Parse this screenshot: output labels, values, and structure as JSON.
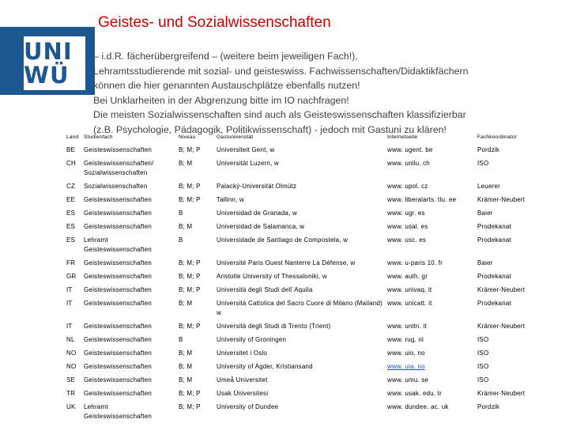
{
  "header": {
    "title": "Geistes- und Sozialwissenschaften",
    "logo_line1": "UNI",
    "logo_line2": "WÜ"
  },
  "intro": [
    "– i.d.R. fächerübergreifend – (weitere beim jeweiligen Fach!),",
    "Lehramtsstudierende mit sozial- und geisteswiss. Fachwissenschaften/Didaktikfächern",
    "können die hier genannten Austauschplätze ebenfalls nutzen!",
    "Bei Unklarheiten in der Abgrenzung bitte im IO nachfragen!",
    "Die meisten Sozialwissenschaften sind auch als Geisteswissenschaften klassifizierbar",
    "(z.B. Psychologie, Pädagogik, Politikwissenschaft) - jedoch mit Gastuni zu klären!"
  ],
  "table": {
    "headers": {
      "land": "Land",
      "fach": "Studienfach",
      "niveau": "Niveau",
      "gast": "Gastuniversität",
      "web": "Internetseite",
      "koord": "Fachkoordinator"
    },
    "rows": [
      {
        "land": "BE",
        "fach": "Geisteswissenschaften",
        "niveau": "B; M; P",
        "gast": "Universiteit Gent, w",
        "web": "www. ugent. be",
        "koord": "Pordzik"
      },
      {
        "land": "CH",
        "fach": "Geisteswissenschaften/ Sozialwissenschaften",
        "niveau": "B; M",
        "gast": "Universität Luzern, w",
        "web": "www. unilu. ch",
        "koord": "ISO"
      },
      {
        "land": "CZ",
        "fach": "Sozialwissenschaften",
        "niveau": "B; M; P",
        "gast": "Palacký-Universität Olmütz",
        "web": "www. upol. cz",
        "koord": "Leuerer"
      },
      {
        "land": "EE",
        "fach": "Geisteswissenschaften",
        "niveau": "B; M; P",
        "gast": "Tallinn, w",
        "web": "www. liberalarts. tlu. ee",
        "koord": "Krämer-Neubert"
      },
      {
        "land": "ES",
        "fach": "Geisteswissenschaften",
        "niveau": "B",
        "gast": "Universidad de Granada, w",
        "web": "www. ugr. es",
        "koord": "Baier"
      },
      {
        "land": "ES",
        "fach": "Geisteswissenschaften",
        "niveau": "B; M",
        "gast": "Universidad de Salamanca, w",
        "web": "www. usal. es",
        "koord": "Prodekanat"
      },
      {
        "land": "ES",
        "fach": "Lehramt Geisteswissenschaften",
        "niveau": "B",
        "gast": "Universidade de Santiago de Compostela, w",
        "web": "www. usc. es",
        "koord": "Prodekanat"
      },
      {
        "land": "FR",
        "fach": "Geisteswissenschaften",
        "niveau": "B; M; P",
        "gast": "Université Paris Ouest Nanterre La Défense, w",
        "web": "www. u-paris 10. fr",
        "koord": "Baier"
      },
      {
        "land": "GR",
        "fach": "Geisteswissenschaften",
        "niveau": "B; M; P",
        "gast": "Aristotle University of Thessaloniki, w",
        "web": "www. auth. gr",
        "koord": "Prodekanat"
      },
      {
        "land": "IT",
        "fach": "Geisteswissenschaften",
        "niveau": "B; M; P",
        "gast": "Università degli Studi dell´Aquila",
        "web": "www. univaq. it",
        "koord": "Krämer-Neubert"
      },
      {
        "land": "IT",
        "fach": "Geisteswissenschaften",
        "niveau": "B; M",
        "gast": "Università Cattolica del Sacro Cuore di Milano (Mailand) w",
        "web": "www. unicatt. it",
        "koord": "Prodekanat"
      },
      {
        "land": "IT",
        "fach": "Geisteswissenschaften",
        "niveau": "B; M; P",
        "gast": "Università degli Studi di Trento (Trient)",
        "web": "www. unitn. it",
        "koord": "Krämer-Neubert"
      },
      {
        "land": "NL",
        "fach": "Geisteswissenschaften",
        "niveau": "B",
        "gast": "University of Groningen",
        "web": "www. rug. nl",
        "koord": "ISO"
      },
      {
        "land": "NO",
        "fach": "Geisteswissenschaften",
        "niveau": "B; M",
        "gast": "Universitet i Oslo",
        "web": "www. uio. no",
        "koord": "ISO"
      },
      {
        "land": "NO",
        "fach": "Geisteswissenschaften",
        "niveau": "B; M",
        "gast": "University of Agder, Kristiansand",
        "web": "www. uia. no",
        "koord": "ISO"
      },
      {
        "land": "SE",
        "fach": "Geisteswissenschaften",
        "niveau": "B; M",
        "gast": "Umeå Universitet",
        "web": "www. umu. se",
        "koord": "ISO"
      },
      {
        "land": "TR",
        "fach": "Geisteswissenschaften",
        "niveau": "B; M; P",
        "gast": "Usak Üniversitesi",
        "web": "www. usak. edu. tr",
        "koord": "Krämer-Neubert"
      },
      {
        "land": "UK",
        "fach": "Lehramt Geisteswissenschaften",
        "niveau": "B; M; P",
        "gast": "University of Dundee",
        "web": "www. dundee. ac. uk",
        "koord": "Pordzik"
      }
    ]
  },
  "colors": {
    "title": "#cc0000",
    "logo": "#1c5792",
    "link": "#1a4fd6"
  }
}
